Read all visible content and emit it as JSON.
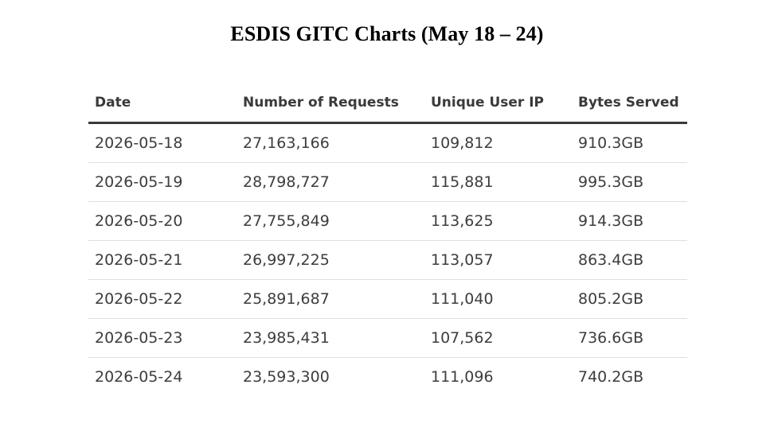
{
  "title": "ESDIS GITC Charts (May 18 – 24)",
  "table": {
    "headers": [
      "Date",
      "Number of Requests",
      "Unique User IP",
      "Bytes Served"
    ],
    "rows": [
      [
        "2026-05-18",
        "27,163,166",
        "109,812",
        "910.3GB"
      ],
      [
        "2026-05-19",
        "28,798,727",
        "115,881",
        "995.3GB"
      ],
      [
        "2026-05-20",
        "27,755,849",
        "113,625",
        "914.3GB"
      ],
      [
        "2026-05-21",
        "26,997,225",
        "113,057",
        "863.4GB"
      ],
      [
        "2026-05-22",
        "25,891,687",
        "111,040",
        "805.2GB"
      ],
      [
        "2026-05-23",
        "23,985,431",
        "107,562",
        "736.6GB"
      ],
      [
        "2026-05-24",
        "23,593,300",
        "111,096",
        "740.2GB"
      ]
    ]
  }
}
